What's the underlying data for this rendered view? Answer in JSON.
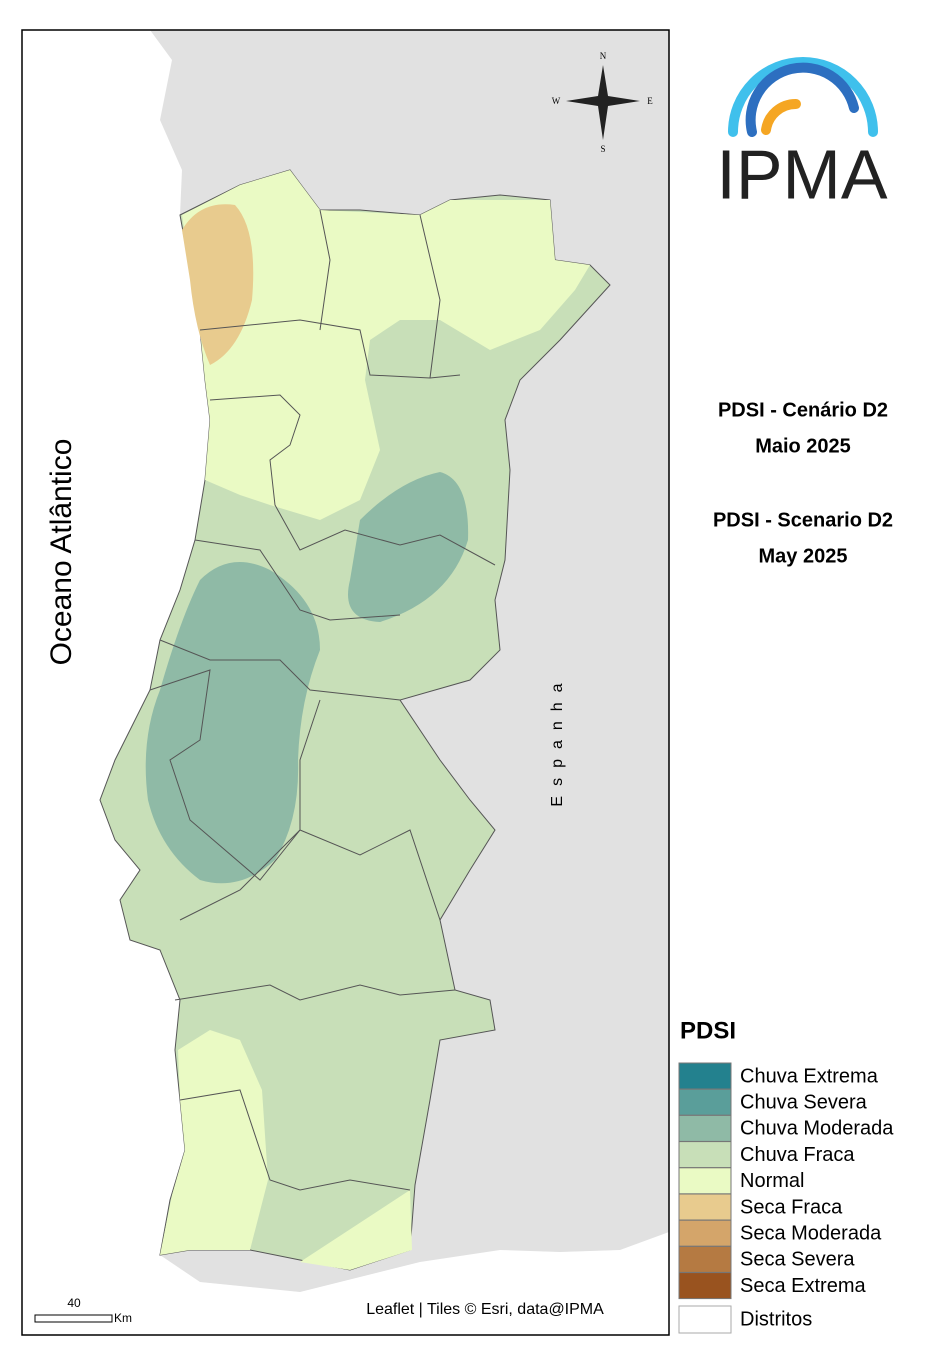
{
  "map": {
    "ocean_label": "Oceano Atlântico",
    "country_label": "Espanha",
    "attribution": "Leaflet | Tiles © Esri, data@IPMA",
    "scale": {
      "value": 40,
      "unit": "Km"
    },
    "compass": {
      "north": "N",
      "east": "E",
      "south": "S",
      "west": "W"
    }
  },
  "logo": {
    "text": "IPMA"
  },
  "titles": [
    "PDSI - Cenário D2",
    "Maio 2025",
    "PDSI - Scenario D2",
    "May 2025"
  ],
  "legend": {
    "title": "PDSI",
    "items": [
      {
        "label": "Chuva Extrema",
        "color": "#23818e"
      },
      {
        "label": "Chuva Severa",
        "color": "#5a9e9a"
      },
      {
        "label": "Chuva Moderada",
        "color": "#8fbaa6"
      },
      {
        "label": "Chuva Fraca",
        "color": "#c8dfb8"
      },
      {
        "label": "Normal",
        "color": "#eafac4"
      },
      {
        "label": "Seca Fraca",
        "color": "#e8cb8e"
      },
      {
        "label": "Seca Moderada",
        "color": "#d4a56a"
      },
      {
        "label": "Seca Severa",
        "color": "#b57a42"
      },
      {
        "label": "Seca Extrema",
        "color": "#99531f"
      }
    ],
    "boundary": "Distritos"
  }
}
